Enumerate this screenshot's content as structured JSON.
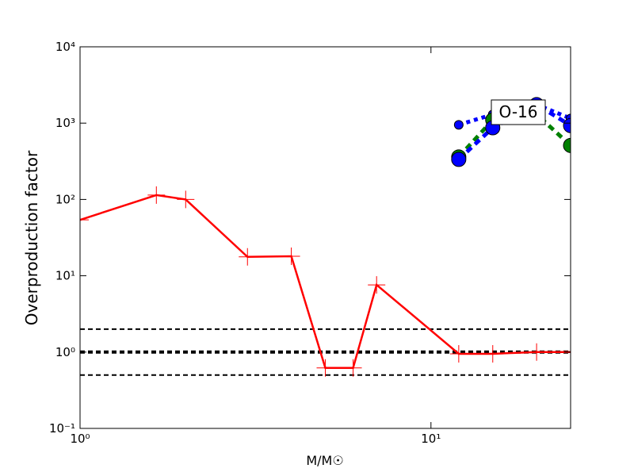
{
  "chart_data": {
    "type": "line",
    "xlabel": "M/M☉",
    "ylabel": "Overproduction factor",
    "annotation": "O-16",
    "xlog": true,
    "ylog": true,
    "xlim": [
      1,
      25
    ],
    "ylim": [
      0.1,
      10000
    ],
    "xticks": [
      {
        "value": 1,
        "label": "10⁰"
      },
      {
        "value": 10,
        "label": "10¹"
      }
    ],
    "yticks": [
      {
        "value": 0.1,
        "label": "10⁻¹"
      },
      {
        "value": 1,
        "label": "10⁰"
      },
      {
        "value": 10,
        "label": "10¹"
      },
      {
        "value": 100,
        "label": "10²"
      },
      {
        "value": 1000,
        "label": "10³"
      },
      {
        "value": 10000,
        "label": "10⁴"
      }
    ],
    "hlines": [
      2,
      1,
      0.5
    ],
    "series": [
      {
        "color": "#ff0000",
        "style": "solid",
        "marker": "plus",
        "x": [
          1,
          1.65,
          2,
          3,
          4,
          5,
          6,
          7,
          12,
          15,
          20,
          25
        ],
        "values": [
          54,
          114,
          100,
          17.7,
          18,
          0.62,
          0.62,
          7.6,
          0.95,
          0.95,
          1.0,
          1.0
        ]
      },
      {
        "color": "#0000ff",
        "style": "dotted",
        "marker": "small-circle",
        "x": [
          12,
          15,
          20,
          25
        ],
        "values": [
          950,
          1300,
          1750,
          1150
        ]
      },
      {
        "color": "#008000",
        "style": "dashed",
        "marker": "circle",
        "x": [
          12,
          15,
          20,
          25
        ],
        "values": [
          360,
          1100,
          1300,
          510
        ]
      },
      {
        "color": "#0000ff",
        "style": "dashed",
        "marker": "circle",
        "x": [
          12,
          15,
          20,
          25
        ],
        "values": [
          335,
          870,
          1750,
          930
        ]
      }
    ]
  }
}
